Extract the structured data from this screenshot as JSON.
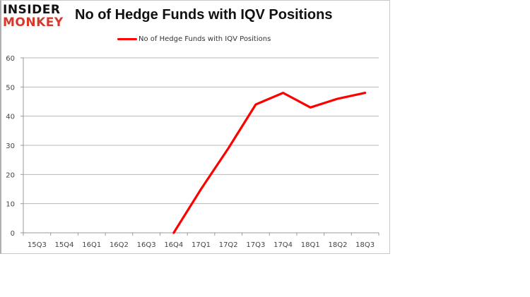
{
  "logo": {
    "line1": "INSIDER",
    "line2": "MONKEY"
  },
  "title": "No of Hedge Funds with IQV Positions",
  "legend": {
    "label": "No of Hedge Funds with IQV Positions",
    "color": "#ff0000"
  },
  "chart_data": {
    "type": "line",
    "title": "No of Hedge Funds with IQV Positions",
    "xlabel": "",
    "ylabel": "",
    "categories": [
      "15Q3",
      "15Q4",
      "16Q1",
      "16Q2",
      "16Q3",
      "16Q4",
      "17Q1",
      "17Q2",
      "17Q3",
      "17Q4",
      "18Q1",
      "18Q2",
      "18Q3"
    ],
    "series": [
      {
        "name": "No of Hedge Funds with IQV Positions",
        "color": "#ff0000",
        "values": [
          null,
          null,
          null,
          null,
          null,
          0,
          15,
          29,
          44,
          48,
          43,
          46,
          48
        ]
      }
    ],
    "ylim": [
      0,
      60
    ],
    "yticks": [
      0,
      10,
      20,
      30,
      40,
      50,
      60
    ],
    "grid": true,
    "legend_position": "top"
  }
}
